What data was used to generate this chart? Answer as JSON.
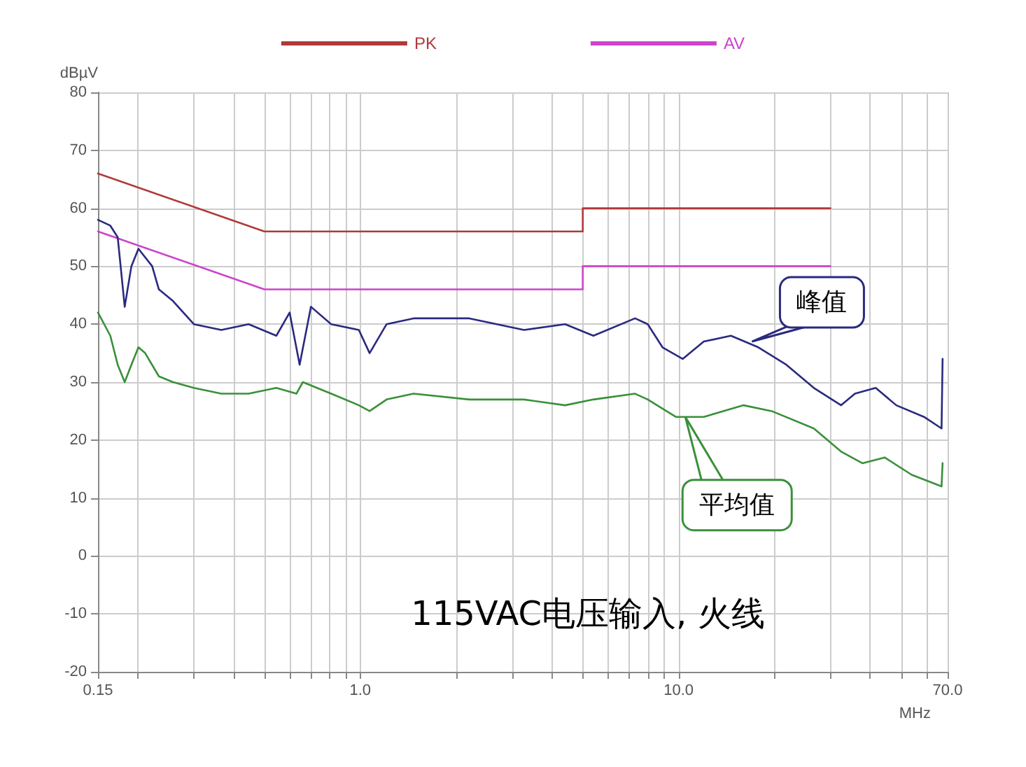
{
  "chart_data": {
    "type": "line",
    "xlabel": "MHz",
    "ylabel": "dBµV",
    "log": "x",
    "xlim": [
      0.15,
      70
    ],
    "ylim": [
      -20,
      80
    ],
    "xticks": [
      0.15,
      {
        "value": 0.2,
        "label": null
      },
      {
        "value": 0.3,
        "label": null
      },
      {
        "value": 0.4,
        "label": null
      },
      {
        "value": 0.5,
        "label": null
      },
      {
        "value": 0.6,
        "label": null
      },
      {
        "value": 0.7,
        "label": null
      },
      {
        "value": 0.8,
        "label": null
      },
      {
        "value": 0.9,
        "label": null
      },
      {
        "value": 1,
        "label": "1.0"
      },
      {
        "value": 2,
        "label": null
      },
      {
        "value": 3,
        "label": null
      },
      {
        "value": 4,
        "label": null
      },
      {
        "value": 5,
        "label": null
      },
      {
        "value": 6,
        "label": null
      },
      {
        "value": 7,
        "label": null
      },
      {
        "value": 8,
        "label": null
      },
      {
        "value": 9,
        "label": null
      },
      {
        "value": 10,
        "label": "10.0"
      },
      {
        "value": 20,
        "label": null
      },
      {
        "value": 30,
        "label": null
      },
      {
        "value": 40,
        "label": null
      },
      {
        "value": 50,
        "label": null
      },
      {
        "value": 60,
        "label": null
      },
      {
        "value": 70,
        "label": "70.0"
      }
    ],
    "yticks": [
      -20,
      -10,
      0,
      10,
      20,
      30,
      40,
      50,
      60,
      70,
      80
    ],
    "grid": true,
    "legend": "top",
    "marker": "none",
    "line_style": "solid",
    "series": [
      {
        "name": "PK",
        "color": "#b03a3a",
        "x": [
          0.15,
          0.5,
          5,
          5,
          30
        ],
        "values": [
          66,
          56,
          56,
          60,
          60
        ]
      },
      {
        "name": "AV",
        "color": "#cc44cc",
        "x": [
          0.15,
          0.5,
          5,
          5,
          30
        ],
        "values": [
          56,
          46,
          46,
          50,
          50
        ]
      },
      {
        "color": "#2a2a80",
        "x": [
          0.15,
          0.164,
          0.173,
          0.182,
          0.191,
          0.201,
          0.222,
          0.233,
          0.258,
          0.3,
          0.366,
          0.446,
          0.545,
          0.6,
          0.645,
          0.7,
          0.81,
          0.99,
          1.07,
          1.21,
          1.47,
          2.2,
          3.27,
          4.4,
          5.4,
          7.3,
          8,
          8.9,
          10.3,
          12,
          14.6,
          17.8,
          21.8,
          26.6,
          32.4,
          35.8,
          41.6,
          48.3,
          59,
          67,
          67.5
        ],
        "values": [
          58,
          57,
          55,
          43,
          50,
          53,
          50,
          46,
          44,
          40,
          39,
          40,
          38,
          42,
          33,
          43,
          40,
          39,
          35,
          40,
          41,
          41,
          39,
          40,
          38,
          41,
          40,
          36,
          34,
          37,
          38,
          36,
          33,
          29,
          26,
          28,
          29,
          26,
          24,
          22,
          34
        ]
      },
      {
        "color": "#3a903a",
        "x": [
          0.15,
          0.164,
          0.173,
          0.182,
          0.191,
          0.201,
          0.211,
          0.233,
          0.258,
          0.3,
          0.366,
          0.446,
          0.545,
          0.63,
          0.66,
          0.81,
          0.99,
          1.07,
          1.21,
          1.47,
          2.2,
          3.27,
          4.4,
          5.4,
          7.3,
          8,
          9.8,
          12,
          16,
          19.6,
          26.6,
          32.4,
          37.8,
          44.4,
          54,
          67,
          67.5
        ],
        "values": [
          42,
          38,
          33,
          30,
          33,
          36,
          35,
          31,
          30,
          29,
          28,
          28,
          29,
          28,
          30,
          28,
          26,
          25,
          27,
          28,
          27,
          27,
          26,
          27,
          28,
          27,
          24,
          24,
          26,
          25,
          22,
          18,
          16,
          17,
          14,
          12,
          16
        ]
      }
    ],
    "annotations": [
      {
        "text": "峰值",
        "x": 17,
        "y": 37
      },
      {
        "text": "平均值",
        "x": 10.5,
        "y": 24
      },
      "115VAC电压输入, 火线"
    ]
  }
}
